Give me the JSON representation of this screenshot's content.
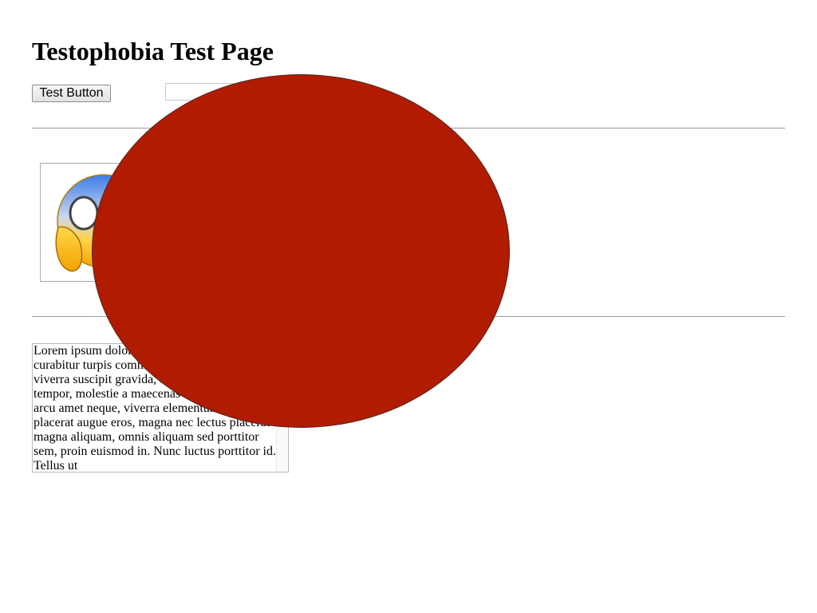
{
  "page": {
    "title": "Testophobia Test Page"
  },
  "form": {
    "button_label": "Test Button",
    "input_value": "",
    "input_placeholder": ""
  },
  "image": {
    "icon": "face-screaming-in-fear-icon"
  },
  "text_area": {
    "content": "Lorem ipsum dolor sit amet, consectetur curabitur turpis commodo, eget sed at dui, viverra suscipit gravida, ut sagittis et, amet sit tempor, molestie a maecenas taciti vitae est. Mi arcu amet neque, viverra elementum veniam placerat augue eros, magna nec lectus placerat magna aliquam, omnis aliquam sed porttitor sem, proin euismod in. Nunc luctus porttitor id. Tellus ut"
  },
  "overlay": {
    "color": "#b11b00",
    "shape": "oval"
  },
  "colors": {
    "oval_fill": "#b11b00",
    "rule": "#9a9a9a"
  }
}
